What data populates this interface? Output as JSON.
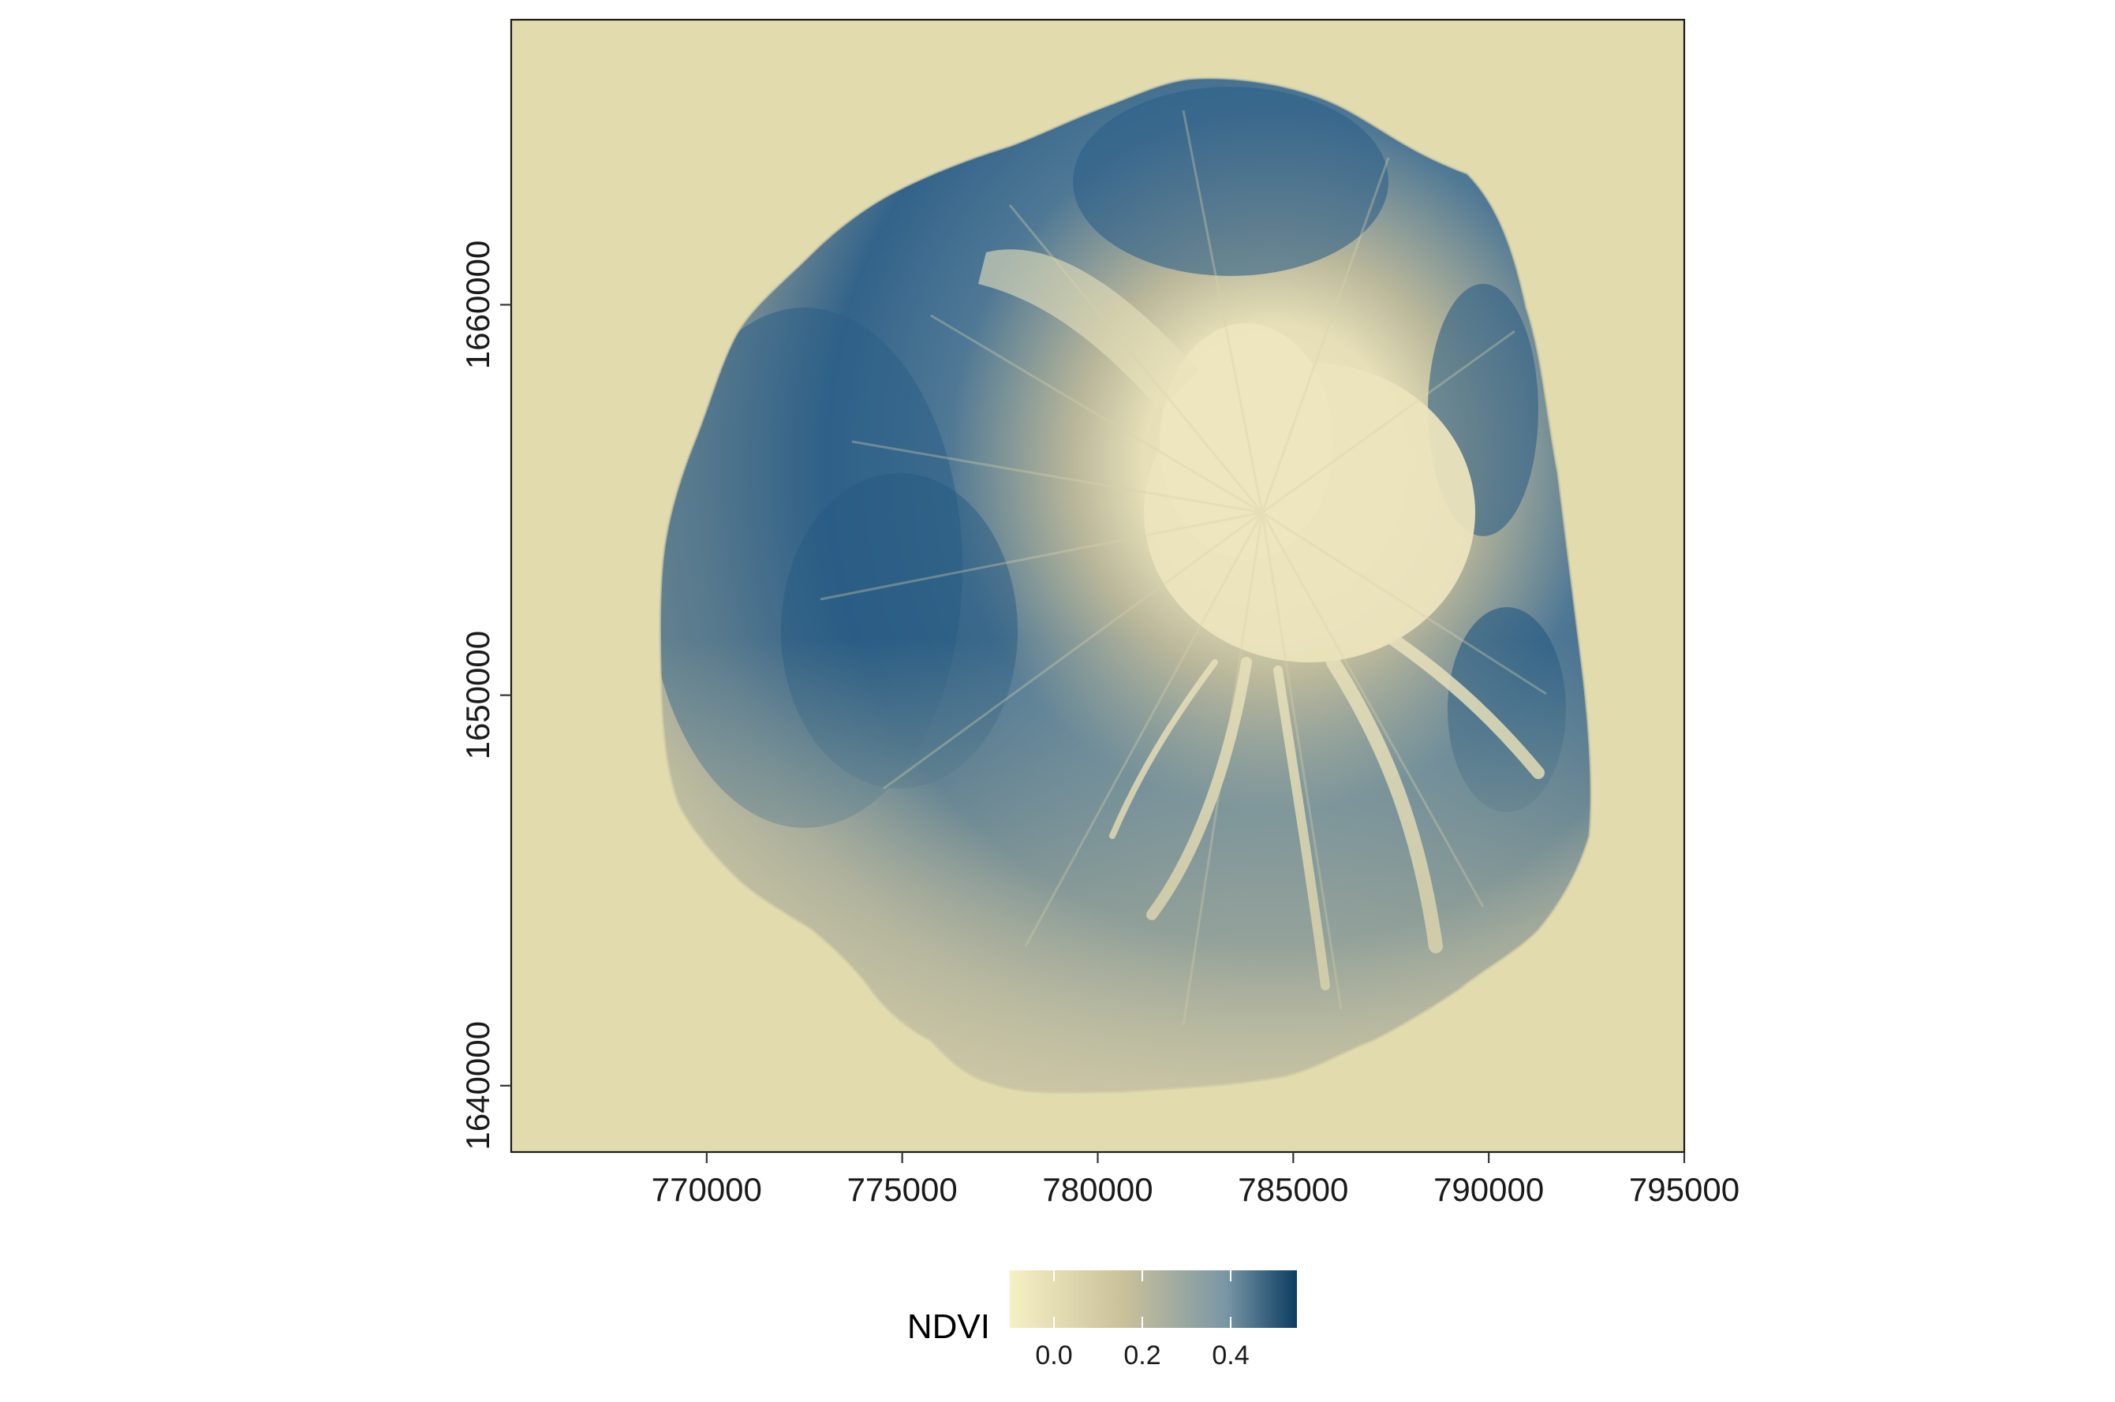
{
  "map": {
    "x_axis": {
      "range": [
        765000,
        795000
      ],
      "ticks": [
        {
          "value": 770000,
          "label": "770000"
        },
        {
          "value": 775000,
          "label": "775000"
        },
        {
          "value": 780000,
          "label": "780000"
        },
        {
          "value": 785000,
          "label": "785000"
        },
        {
          "value": 790000,
          "label": "790000"
        },
        {
          "value": 795000,
          "label": "795000"
        }
      ]
    },
    "y_axis": {
      "range": [
        1638300,
        1667300
      ],
      "ticks": [
        {
          "value": 1640000,
          "label": "1640000"
        },
        {
          "value": 1650000,
          "label": "1650000"
        },
        {
          "value": 1660000,
          "label": "1660000"
        }
      ]
    },
    "legend": {
      "title": "NDVI",
      "range": [
        -0.1,
        0.55
      ],
      "ticks": [
        {
          "value": 0.0,
          "label": "0.0"
        },
        {
          "value": 0.2,
          "label": "0.2"
        },
        {
          "value": 0.4,
          "label": "0.4"
        }
      ],
      "colors": [
        "#f6f0c4",
        "#c9c09a",
        "#7a97a6",
        "#0b3d62"
      ]
    },
    "background_color": "#e1dbad"
  }
}
